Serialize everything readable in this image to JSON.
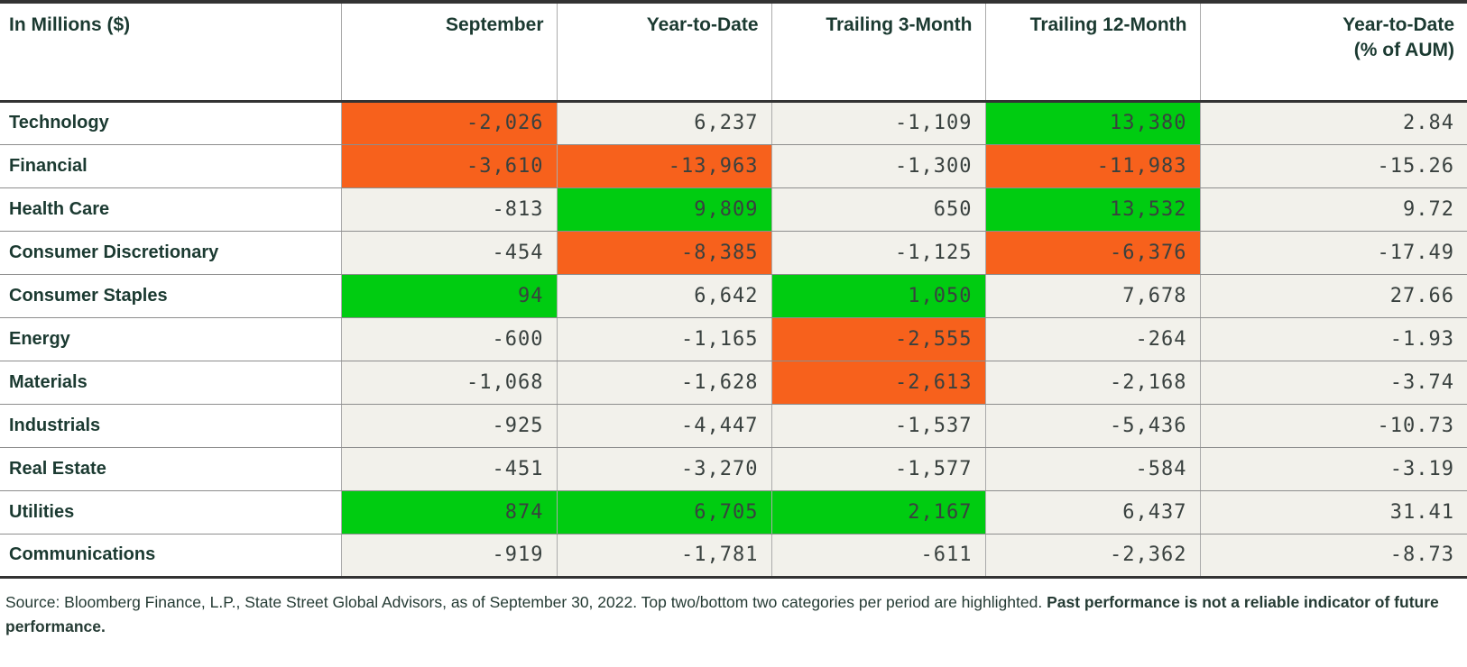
{
  "table": {
    "corner_label": "In Millions ($)",
    "columns": [
      {
        "label": "September",
        "sublabel": ""
      },
      {
        "label": "Year-to-Date",
        "sublabel": ""
      },
      {
        "label": "Trailing 3-Month",
        "sublabel": ""
      },
      {
        "label": "Trailing 12-Month",
        "sublabel": ""
      },
      {
        "label": "Year-to-Date",
        "sublabel": "(% of AUM)"
      }
    ],
    "rows": [
      {
        "sector": "Technology",
        "cells": [
          {
            "value": "-2,026",
            "highlight": "orange"
          },
          {
            "value": "6,237",
            "highlight": "none"
          },
          {
            "value": "-1,109",
            "highlight": "none"
          },
          {
            "value": "13,380",
            "highlight": "green"
          },
          {
            "value": "2.84",
            "highlight": "none"
          }
        ]
      },
      {
        "sector": "Financial",
        "cells": [
          {
            "value": "-3,610",
            "highlight": "orange"
          },
          {
            "value": "-13,963",
            "highlight": "orange"
          },
          {
            "value": "-1,300",
            "highlight": "none"
          },
          {
            "value": "-11,983",
            "highlight": "orange"
          },
          {
            "value": "-15.26",
            "highlight": "none"
          }
        ]
      },
      {
        "sector": "Health Care",
        "cells": [
          {
            "value": "-813",
            "highlight": "none"
          },
          {
            "value": "9,809",
            "highlight": "green"
          },
          {
            "value": "650",
            "highlight": "none"
          },
          {
            "value": "13,532",
            "highlight": "green"
          },
          {
            "value": "9.72",
            "highlight": "none"
          }
        ]
      },
      {
        "sector": "Consumer Discretionary",
        "cells": [
          {
            "value": "-454",
            "highlight": "none"
          },
          {
            "value": "-8,385",
            "highlight": "orange"
          },
          {
            "value": "-1,125",
            "highlight": "none"
          },
          {
            "value": "-6,376",
            "highlight": "orange"
          },
          {
            "value": "-17.49",
            "highlight": "none"
          }
        ]
      },
      {
        "sector": "Consumer Staples",
        "cells": [
          {
            "value": "94",
            "highlight": "green"
          },
          {
            "value": "6,642",
            "highlight": "none"
          },
          {
            "value": "1,050",
            "highlight": "green"
          },
          {
            "value": "7,678",
            "highlight": "none"
          },
          {
            "value": "27.66",
            "highlight": "none"
          }
        ]
      },
      {
        "sector": "Energy",
        "cells": [
          {
            "value": "-600",
            "highlight": "none"
          },
          {
            "value": "-1,165",
            "highlight": "none"
          },
          {
            "value": "-2,555",
            "highlight": "orange"
          },
          {
            "value": "-264",
            "highlight": "none"
          },
          {
            "value": "-1.93",
            "highlight": "none"
          }
        ]
      },
      {
        "sector": "Materials",
        "cells": [
          {
            "value": "-1,068",
            "highlight": "none"
          },
          {
            "value": "-1,628",
            "highlight": "none"
          },
          {
            "value": "-2,613",
            "highlight": "orange"
          },
          {
            "value": "-2,168",
            "highlight": "none"
          },
          {
            "value": "-3.74",
            "highlight": "none"
          }
        ]
      },
      {
        "sector": "Industrials",
        "cells": [
          {
            "value": "-925",
            "highlight": "none"
          },
          {
            "value": "-4,447",
            "highlight": "none"
          },
          {
            "value": "-1,537",
            "highlight": "none"
          },
          {
            "value": "-5,436",
            "highlight": "none"
          },
          {
            "value": "-10.73",
            "highlight": "none"
          }
        ]
      },
      {
        "sector": "Real Estate",
        "cells": [
          {
            "value": "-451",
            "highlight": "none"
          },
          {
            "value": "-3,270",
            "highlight": "none"
          },
          {
            "value": "-1,577",
            "highlight": "none"
          },
          {
            "value": "-584",
            "highlight": "none"
          },
          {
            "value": "-3.19",
            "highlight": "none"
          }
        ]
      },
      {
        "sector": "Utilities",
        "cells": [
          {
            "value": "874",
            "highlight": "green"
          },
          {
            "value": "6,705",
            "highlight": "green"
          },
          {
            "value": "2,167",
            "highlight": "green"
          },
          {
            "value": "6,437",
            "highlight": "none"
          },
          {
            "value": "31.41",
            "highlight": "none"
          }
        ]
      },
      {
        "sector": "Communications",
        "cells": [
          {
            "value": "-919",
            "highlight": "none"
          },
          {
            "value": "-1,781",
            "highlight": "none"
          },
          {
            "value": "-611",
            "highlight": "none"
          },
          {
            "value": "-2,362",
            "highlight": "none"
          },
          {
            "value": "-8.73",
            "highlight": "none"
          }
        ]
      }
    ]
  },
  "footer": {
    "source_text": "Source: Bloomberg Finance, L.P., State Street Global Advisors, as of September 30, 2022. Top two/bottom two categories per period are highlighted.",
    "bold_text": "Past performance is not a reliable indicator of future performance."
  },
  "colors": {
    "positive_highlight": "#00cc11",
    "negative_highlight": "#f7611c",
    "cell_background": "#f2f1eb",
    "header_text": "#1b3a31",
    "number_text": "#39413f",
    "rule_dark": "#333333"
  },
  "chart_data": {
    "type": "table",
    "title": "In Millions ($)",
    "columns": [
      "September",
      "Year-to-Date",
      "Trailing 3-Month",
      "Trailing 12-Month",
      "Year-to-Date (% of AUM)"
    ],
    "rows": [
      {
        "category": "Technology",
        "values": [
          -2026,
          6237,
          -1109,
          13380,
          2.84
        ],
        "highlights": [
          "bottom",
          "none",
          "none",
          "top",
          "none"
        ]
      },
      {
        "category": "Financial",
        "values": [
          -3610,
          -13963,
          -1300,
          -11983,
          -15.26
        ],
        "highlights": [
          "bottom",
          "bottom",
          "none",
          "bottom",
          "none"
        ]
      },
      {
        "category": "Health Care",
        "values": [
          -813,
          9809,
          650,
          13532,
          9.72
        ],
        "highlights": [
          "none",
          "top",
          "none",
          "top",
          "none"
        ]
      },
      {
        "category": "Consumer Discretionary",
        "values": [
          -454,
          -8385,
          -1125,
          -6376,
          -17.49
        ],
        "highlights": [
          "none",
          "bottom",
          "none",
          "bottom",
          "none"
        ]
      },
      {
        "category": "Consumer Staples",
        "values": [
          94,
          6642,
          1050,
          7678,
          27.66
        ],
        "highlights": [
          "top",
          "none",
          "top",
          "none",
          "none"
        ]
      },
      {
        "category": "Energy",
        "values": [
          -600,
          -1165,
          -2555,
          -264,
          -1.93
        ],
        "highlights": [
          "none",
          "none",
          "bottom",
          "none",
          "none"
        ]
      },
      {
        "category": "Materials",
        "values": [
          -1068,
          -1628,
          -2613,
          -2168,
          -3.74
        ],
        "highlights": [
          "none",
          "none",
          "bottom",
          "none",
          "none"
        ]
      },
      {
        "category": "Industrials",
        "values": [
          -925,
          -4447,
          -1537,
          -5436,
          -10.73
        ],
        "highlights": [
          "none",
          "none",
          "none",
          "none",
          "none"
        ]
      },
      {
        "category": "Real Estate",
        "values": [
          -451,
          -3270,
          -1577,
          -584,
          -3.19
        ],
        "highlights": [
          "none",
          "none",
          "none",
          "none",
          "none"
        ]
      },
      {
        "category": "Utilities",
        "values": [
          874,
          6705,
          2167,
          6437,
          31.41
        ],
        "highlights": [
          "top",
          "top",
          "top",
          "none",
          "none"
        ]
      },
      {
        "category": "Communications",
        "values": [
          -919,
          -1781,
          -611,
          -2362,
          -8.73
        ],
        "highlights": [
          "none",
          "none",
          "none",
          "none",
          "none"
        ]
      }
    ],
    "highlight_rule": "Top two/bottom two categories per period are highlighted",
    "highlight_colors": {
      "top": "#00cc11",
      "bottom": "#f7611c"
    }
  }
}
